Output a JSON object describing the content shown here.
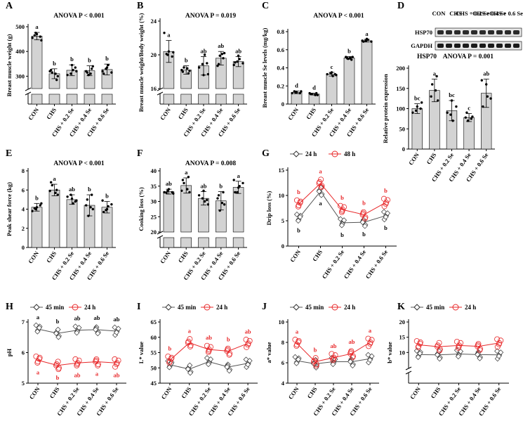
{
  "colors": {
    "bar": "#d3d3d3",
    "red": "#e8282a",
    "black": "#000000",
    "grey": "#555555"
  },
  "categories": [
    "CON",
    "CHS",
    "CHS + 0.2 Se",
    "CHS + 0.4 Se",
    "CHS + 0.6 Se"
  ],
  "chart_data": [
    {
      "id": "A",
      "type": "bar",
      "ylabel": "Breast muscle weight (g)",
      "anova": "ANOVA P < 0.001",
      "ylim": [
        0,
        500
      ],
      "break": [
        50,
        250
      ],
      "ticks": [
        300,
        400,
        500
      ],
      "means": [
        462,
        310,
        324,
        322,
        327
      ],
      "sd": [
        15,
        20,
        22,
        20,
        22
      ],
      "letters": [
        "a",
        "b",
        "b",
        "b",
        "b"
      ],
      "points": [
        [
          455,
          470,
          445,
          475,
          460,
          465
        ],
        [
          300,
          315,
          285,
          325,
          310,
          320
        ],
        [
          325,
          305,
          345,
          320,
          310,
          335
        ],
        [
          305,
          340,
          315,
          330,
          320,
          310
        ],
        [
          310,
          345,
          320,
          335,
          315,
          330
        ]
      ]
    },
    {
      "id": "B",
      "type": "bar",
      "ylabel": "Breast muscle weight/Body weight (%)",
      "anova": "ANOVA P = 0.019",
      "ylim": [
        0,
        24
      ],
      "break": [
        3,
        16
      ],
      "ticks": [
        16,
        20,
        24
      ],
      "means": [
        20.4,
        18.2,
        18.7,
        19.6,
        19.2
      ],
      "sd": [
        1.3,
        0.5,
        1.1,
        0.8,
        0.6
      ],
      "letters": [
        "a",
        "b",
        "ab",
        "ab",
        "ab"
      ],
      "points": [
        [
          22.6,
          20.4,
          20.3,
          20,
          19.8,
          20.1
        ],
        [
          18.1,
          18.5,
          17.8,
          18.0,
          18.4,
          18.2
        ],
        [
          20.0,
          18.5,
          17.6,
          17.7,
          18.9,
          19.0
        ],
        [
          19.9,
          20.2,
          18.9,
          19.6,
          18.7,
          20.1
        ],
        [
          19.1,
          19.5,
          18.8,
          19.9,
          19.0,
          19.2
        ]
      ]
    },
    {
      "id": "C",
      "type": "bar",
      "ylabel": "Breast muscle Se levels (mg/kg)",
      "anova": "ANOVA P < 0.001",
      "ylim": [
        0,
        0.8
      ],
      "ticks": [
        0.0,
        0.2,
        0.4,
        0.6,
        0.8
      ],
      "means": [
        0.13,
        0.11,
        0.33,
        0.51,
        0.7
      ],
      "sd": [
        0.015,
        0.01,
        0.02,
        0.015,
        0.015
      ],
      "letters": [
        "d",
        "d",
        "c",
        "b",
        "a"
      ],
      "points": [
        [
          0.12,
          0.13,
          0.14,
          0.13,
          0.12,
          0.14
        ],
        [
          0.1,
          0.11,
          0.12,
          0.11,
          0.1,
          0.12
        ],
        [
          0.31,
          0.33,
          0.35,
          0.32,
          0.34,
          0.33
        ],
        [
          0.5,
          0.52,
          0.51,
          0.49,
          0.52,
          0.51
        ],
        [
          0.69,
          0.71,
          0.7,
          0.72,
          0.69,
          0.7
        ]
      ]
    },
    {
      "id": "D",
      "type": "bar",
      "ylabel": "Relative protein expression",
      "anova": "ANOVA P = 0.001",
      "subtitle": "HSP70",
      "ylim": [
        0,
        200
      ],
      "ticks": [
        0,
        50,
        100,
        150,
        200
      ],
      "means": [
        100,
        145,
        95,
        78,
        138
      ],
      "sd": [
        12,
        28,
        25,
        10,
        35
      ],
      "letters": [
        "bc",
        "a",
        "bc",
        "c",
        "ab"
      ],
      "points": [
        [
          90,
          105,
          115,
          95,
          100
        ],
        [
          120,
          160,
          180,
          130,
          145
        ],
        [
          70,
          90,
          120,
          105,
          85
        ],
        [
          70,
          80,
          90,
          75,
          78
        ],
        [
          105,
          130,
          170,
          160,
          125
        ]
      ],
      "blot_labels": [
        "HSP70",
        "GAPDH"
      ],
      "lanes": [
        "CON",
        "CHS",
        "CHS + 0.2 Se",
        "CHS + 0.4 Se",
        "CHS + 0.6 Se"
      ]
    },
    {
      "id": "E",
      "type": "bar",
      "ylabel": "Peak shear force (kg)",
      "anova": "ANOVA P < 0.001",
      "ylim": [
        0,
        8
      ],
      "ticks": [
        0,
        2,
        4,
        6,
        8
      ],
      "means": [
        4.2,
        6.0,
        5.0,
        4.4,
        4.2
      ],
      "sd": [
        0.4,
        0.6,
        0.5,
        1.1,
        0.6
      ],
      "letters": [
        "b",
        "a",
        "ab",
        "b",
        "b"
      ],
      "points": [
        [
          3.8,
          4.2,
          4.6,
          4.0,
          4.4,
          4.1
        ],
        [
          5.5,
          6.5,
          6.0,
          6.8,
          5.7,
          5.9
        ],
        [
          4.6,
          5.3,
          5.1,
          4.9,
          5.5,
          4.8
        ],
        [
          3.3,
          4.0,
          5.0,
          5.5,
          4.4,
          4.2
        ],
        [
          3.7,
          4.3,
          4.9,
          4.0,
          4.5,
          3.9
        ]
      ]
    },
    {
      "id": "F",
      "type": "bar",
      "ylabel": "Cooking loss (%)",
      "anova": "ANOVA P = 0.008",
      "ylim": [
        0,
        40
      ],
      "break": [
        5,
        20
      ],
      "ticks": [
        20,
        25,
        30,
        35,
        40
      ],
      "means": [
        33.2,
        35.2,
        31.0,
        30.2,
        34.6
      ],
      "sd": [
        0.8,
        2.5,
        2.2,
        3.0,
        2.0
      ],
      "letters": [
        "ab",
        "a",
        "ab",
        "b",
        "a"
      ],
      "points": [
        [
          33,
          34,
          32.6,
          33.5,
          33.0,
          32.8
        ],
        [
          33,
          36,
          38,
          37,
          34,
          33.5
        ],
        [
          30,
          32,
          33.5,
          29,
          31,
          30.5
        ],
        [
          27,
          29,
          32,
          33,
          31,
          29.5
        ],
        [
          33,
          35,
          37,
          34.5,
          36,
          33
        ]
      ]
    },
    {
      "id": "G",
      "type": "line",
      "ylabel": "Drip loss (%)",
      "ylim": [
        0,
        15
      ],
      "ticks": [
        0,
        5,
        10,
        15
      ],
      "series": [
        {
          "name": "24 h",
          "means": [
            5.5,
            10.8,
            4.6,
            4.7,
            6.0
          ],
          "letters": [
            "b",
            "a",
            "b",
            "b",
            "b"
          ]
        },
        {
          "name": "48 h",
          "means": [
            8.3,
            12.4,
            7.2,
            6.2,
            8.6
          ],
          "letters": [
            "b",
            "a",
            "b",
            "b",
            "b"
          ]
        }
      ]
    },
    {
      "id": "H",
      "type": "line",
      "ylabel": "pH",
      "ylim": [
        5,
        7
      ],
      "ticks": [
        5,
        6,
        7
      ],
      "series": [
        {
          "name": "45 min",
          "means": [
            6.77,
            6.63,
            6.73,
            6.75,
            6.7
          ],
          "letters": [
            "a",
            "b",
            "ab",
            "ab",
            "ab"
          ]
        },
        {
          "name": "24 h",
          "means": [
            5.75,
            5.58,
            5.66,
            5.7,
            5.66
          ],
          "letters": [
            "a",
            "b",
            "ab",
            "a",
            "ab"
          ]
        }
      ]
    },
    {
      "id": "I",
      "type": "line",
      "ylabel": "L* value",
      "ylim": [
        45,
        65
      ],
      "ticks": [
        45,
        50,
        55,
        60,
        65
      ],
      "series": [
        {
          "name": "45 min",
          "means": [
            51.0,
            49.6,
            52.0,
            50.3,
            51.5
          ],
          "letters": []
        },
        {
          "name": "24 h",
          "means": [
            52.5,
            58.2,
            56.0,
            55.5,
            58.0
          ],
          "letters": [
            "b",
            "a",
            "ab",
            "b",
            "ab"
          ]
        }
      ]
    },
    {
      "id": "J",
      "type": "line",
      "ylabel": "a* value",
      "ylim": [
        4,
        10
      ],
      "ticks": [
        4,
        6,
        8,
        10
      ],
      "series": [
        {
          "name": "45 min",
          "means": [
            6.2,
            5.9,
            6.1,
            6.1,
            6.4
          ],
          "letters": []
        },
        {
          "name": "24 h",
          "means": [
            7.9,
            6.1,
            6.5,
            6.9,
            8.0
          ],
          "letters": [
            "a",
            "b",
            "ab",
            "ab",
            "a"
          ]
        }
      ]
    },
    {
      "id": "K",
      "type": "line",
      "ylabel": "b* value",
      "ylim": [
        0,
        20
      ],
      "break": [
        2,
        5
      ],
      "ticks": [
        10,
        15,
        20
      ],
      "series": [
        {
          "name": "45 min",
          "means": [
            9.3,
            9.2,
            9.5,
            9.3,
            9.2
          ],
          "letters": []
        },
        {
          "name": "24 h",
          "means": [
            12.5,
            11.9,
            12.3,
            12.0,
            13.1
          ],
          "letters": []
        }
      ]
    }
  ]
}
